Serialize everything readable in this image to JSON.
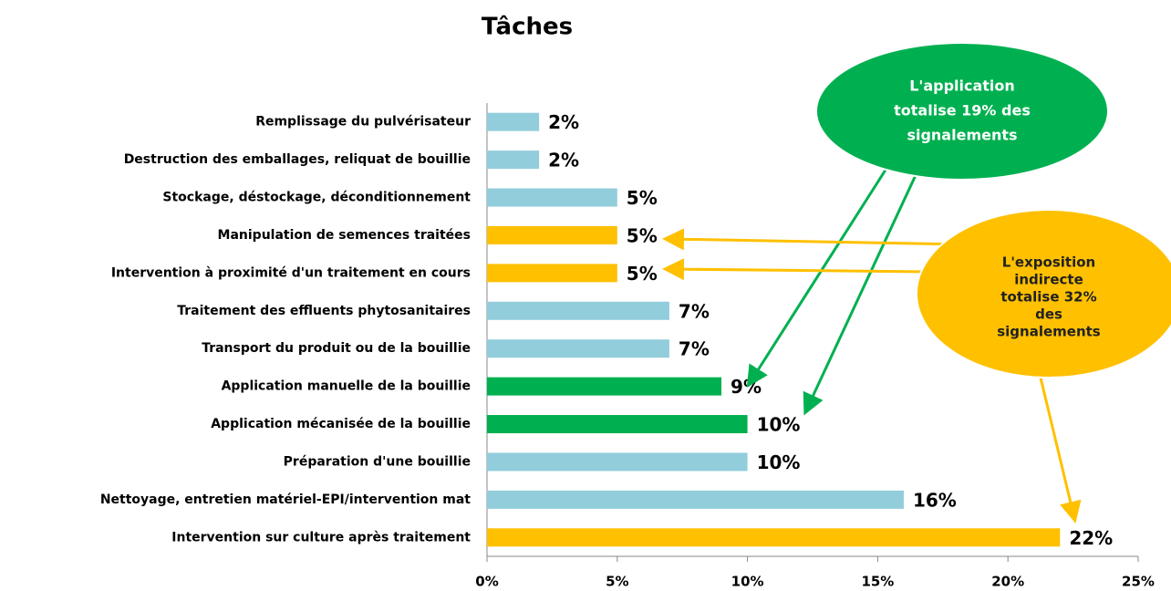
{
  "chart_data": {
    "type": "barh",
    "title": "Tâches",
    "categories": [
      "Remplissage du pulvérisateur",
      "Destruction des emballages, reliquat de bouillie",
      "Stockage, déstockage, déconditionnement",
      "Manipulation de semences traitées",
      "Intervention à proximité d'un traitement en cours",
      "Traitement des effluents phytosanitaires",
      "Transport du produit ou de la bouillie",
      "Application manuelle de la bouillie",
      "Application mécanisée de la bouillie",
      "Préparation d'une bouillie",
      "Nettoyage, entretien matériel-EPI/intervention mat",
      "Intervention sur culture après traitement"
    ],
    "values": [
      2,
      2,
      5,
      5,
      5,
      7,
      7,
      9,
      10,
      10,
      16,
      22
    ],
    "value_labels": [
      "2%",
      "2%",
      "5%",
      "5%",
      "5%",
      "7%",
      "7%",
      "9%",
      "10%",
      "10%",
      "16%",
      "22%"
    ],
    "colors": [
      "#92cddc",
      "#92cddc",
      "#92cddc",
      "#ffc000",
      "#ffc000",
      "#92cddc",
      "#92cddc",
      "#00b050",
      "#00b050",
      "#92cddc",
      "#92cddc",
      "#ffc000"
    ],
    "xlim": [
      0,
      25
    ],
    "xticks": [
      {
        "value": 0,
        "label": "0%"
      },
      {
        "value": 5,
        "label": "5%"
      },
      {
        "value": 10,
        "label": "10%"
      },
      {
        "value": 15,
        "label": "15%"
      },
      {
        "value": 20,
        "label": "20%"
      },
      {
        "value": 25,
        "label": "25%"
      }
    ],
    "annotations": [
      {
        "lines": [
          "L'application",
          "totalise 19% des",
          "signalements"
        ],
        "color": "#00b050"
      },
      {
        "lines": [
          "L'exposition",
          "indirecte",
          "totalise 32%",
          "des",
          "signalements"
        ],
        "color": "#ffc000"
      }
    ]
  }
}
